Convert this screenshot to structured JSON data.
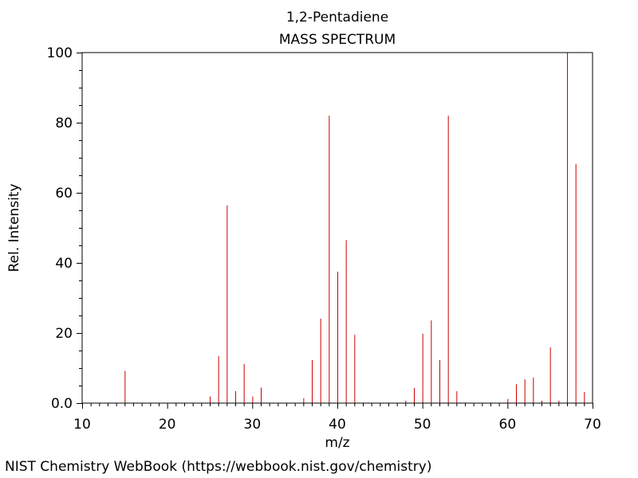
{
  "chart_data": {
    "type": "bar",
    "title": "1,2-Pentadiene",
    "subtitle": "MASS SPECTRUM",
    "xlabel": "m/z",
    "ylabel": "Rel. Intensity",
    "xlim": [
      10,
      70
    ],
    "ylim": [
      0,
      100
    ],
    "x_ticks": [
      "10",
      "20",
      "30",
      "40",
      "50",
      "60",
      "70"
    ],
    "y_ticks": [
      "0.0",
      "20",
      "40",
      "60",
      "80",
      "100"
    ],
    "grid": false,
    "series_color": "#cc0000",
    "peaks": [
      {
        "mz": 15,
        "intensity": 9.2
      },
      {
        "mz": 25,
        "intensity": 1.9
      },
      {
        "mz": 26,
        "intensity": 13.4
      },
      {
        "mz": 27,
        "intensity": 56.4
      },
      {
        "mz": 28,
        "intensity": 3.4
      },
      {
        "mz": 29,
        "intensity": 11.2
      },
      {
        "mz": 30,
        "intensity": 1.9
      },
      {
        "mz": 31,
        "intensity": 4.4
      },
      {
        "mz": 36,
        "intensity": 1.4
      },
      {
        "mz": 37,
        "intensity": 12.3
      },
      {
        "mz": 38,
        "intensity": 24.1
      },
      {
        "mz": 39,
        "intensity": 82.0
      },
      {
        "mz": 40,
        "intensity": 37.5
      },
      {
        "mz": 41,
        "intensity": 46.5
      },
      {
        "mz": 42,
        "intensity": 19.5
      },
      {
        "mz": 48,
        "intensity": 0.7
      },
      {
        "mz": 49,
        "intensity": 4.3
      },
      {
        "mz": 50,
        "intensity": 19.8
      },
      {
        "mz": 51,
        "intensity": 23.6
      },
      {
        "mz": 52,
        "intensity": 12.3
      },
      {
        "mz": 53,
        "intensity": 82.0
      },
      {
        "mz": 54,
        "intensity": 3.4
      },
      {
        "mz": 60,
        "intensity": 1.2
      },
      {
        "mz": 61,
        "intensity": 5.4
      },
      {
        "mz": 62,
        "intensity": 6.8
      },
      {
        "mz": 63,
        "intensity": 7.3
      },
      {
        "mz": 64,
        "intensity": 0.7
      },
      {
        "mz": 65,
        "intensity": 15.9
      },
      {
        "mz": 66,
        "intensity": 0.7
      },
      {
        "mz": 67,
        "intensity": 100.0
      },
      {
        "mz": 68,
        "intensity": 68.2
      },
      {
        "mz": 69,
        "intensity": 3.2
      }
    ]
  },
  "footer": {
    "credit": "NIST Chemistry WebBook (https://webbook.nist.gov/chemistry)"
  }
}
